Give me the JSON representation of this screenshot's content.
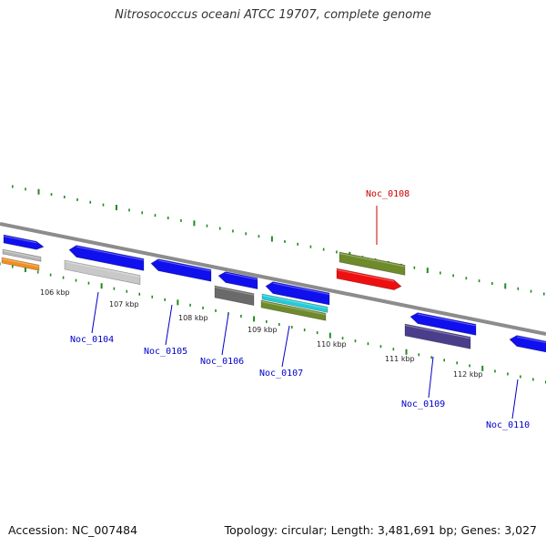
{
  "title": "Nitrosococcus oceani ATCC 19707, complete genome",
  "footer": {
    "accession": "Accession: NC_007484",
    "genome_info": "Topology: circular; Length: 3,481,691 bp; Genes: 3,027"
  },
  "colors": {
    "backbone": "#8c8c8c",
    "tick": "#1e8c1e",
    "label_blue": "#0000c8",
    "label_red": "#cc0000"
  },
  "kbp_labels": [
    "106 kbp",
    "107 kbp",
    "108 kbp",
    "109 kbp",
    "110 kbp",
    "111 kbp",
    "112 kbp"
  ],
  "gene_labels": [
    {
      "text": "Noc_0104",
      "color": "#0000c8"
    },
    {
      "text": "Noc_0105",
      "color": "#0000c8"
    },
    {
      "text": "Noc_0106",
      "color": "#0000c8"
    },
    {
      "text": "Noc_0107",
      "color": "#0000c8"
    },
    {
      "text": "Noc_0108",
      "color": "#cc0000"
    },
    {
      "text": "Noc_0109",
      "color": "#0000c8"
    },
    {
      "text": "Noc_0110",
      "color": "#0000c8"
    }
  ],
  "features": [
    {
      "name": "gene-block",
      "color": "#1010ee"
    },
    {
      "name": "gene-block",
      "color": "#b4b4b4"
    },
    {
      "name": "gene-block",
      "color": "#f09020"
    },
    {
      "name": "gene-block",
      "color": "#1010ee"
    },
    {
      "name": "gene-block",
      "color": "#c8c8c8"
    },
    {
      "name": "gene-block",
      "color": "#1010ee"
    },
    {
      "name": "gene-block",
      "color": "#1010ee"
    },
    {
      "name": "gene-block",
      "color": "#6a6a6a"
    },
    {
      "name": "gene-block",
      "color": "#1010ee"
    },
    {
      "name": "gene-block",
      "color": "#22ccd8"
    },
    {
      "name": "gene-block",
      "color": "#6e8a2a"
    },
    {
      "name": "gene-block",
      "color": "#6e8a2a"
    },
    {
      "name": "gene-block",
      "color": "#ee1010"
    },
    {
      "name": "gene-block",
      "color": "#1010ee"
    },
    {
      "name": "gene-block",
      "color": "#4a3e8a"
    },
    {
      "name": "gene-block",
      "color": "#1010ee"
    }
  ]
}
